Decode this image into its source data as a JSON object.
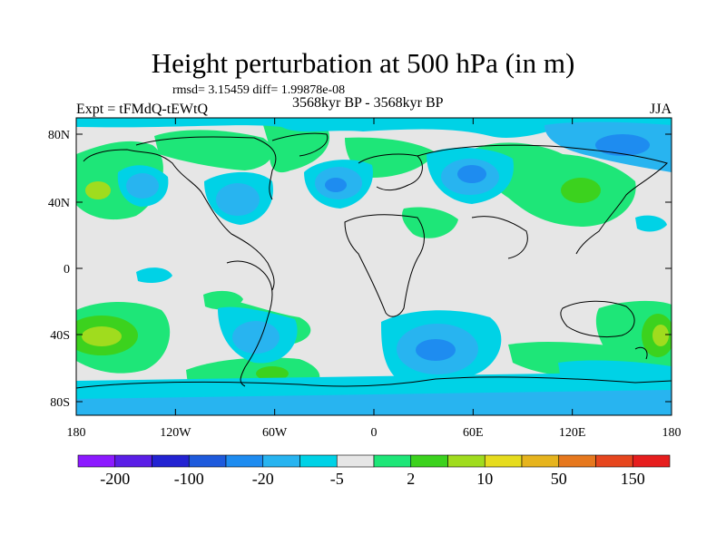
{
  "header": {
    "title": "Height perturbation at 500 hPa (in m)",
    "stats": "rmsd= 3.15459 diff= 1.99878e-08",
    "period": "3568kyr BP - 3568kyr BP",
    "experiment": "Expt = tFMdQ-tEWtQ",
    "season": "JJA"
  },
  "map": {
    "lat_ticks": [
      "80N",
      "40N",
      "0",
      "40S",
      "80S"
    ],
    "lon_ticks": [
      "180",
      "120W",
      "60W",
      "0",
      "60E",
      "120E",
      "180"
    ]
  },
  "colorbar": {
    "colors": [
      "#8c1aff",
      "#5a1ee6",
      "#2323d2",
      "#1e5adc",
      "#1e8cf0",
      "#28b4f0",
      "#00d2e6",
      "#e6e6e6",
      "#1ee678",
      "#3cd21e",
      "#a0dc1e",
      "#e6dc1e",
      "#e6b41e",
      "#e6781e",
      "#e6461e",
      "#e61e1e"
    ],
    "labels": [
      "-200",
      "-100",
      "-20",
      "-5",
      "2",
      "10",
      "50",
      "150"
    ]
  },
  "colors": {
    "background": "#e6e6e6",
    "coast": "#000000"
  }
}
